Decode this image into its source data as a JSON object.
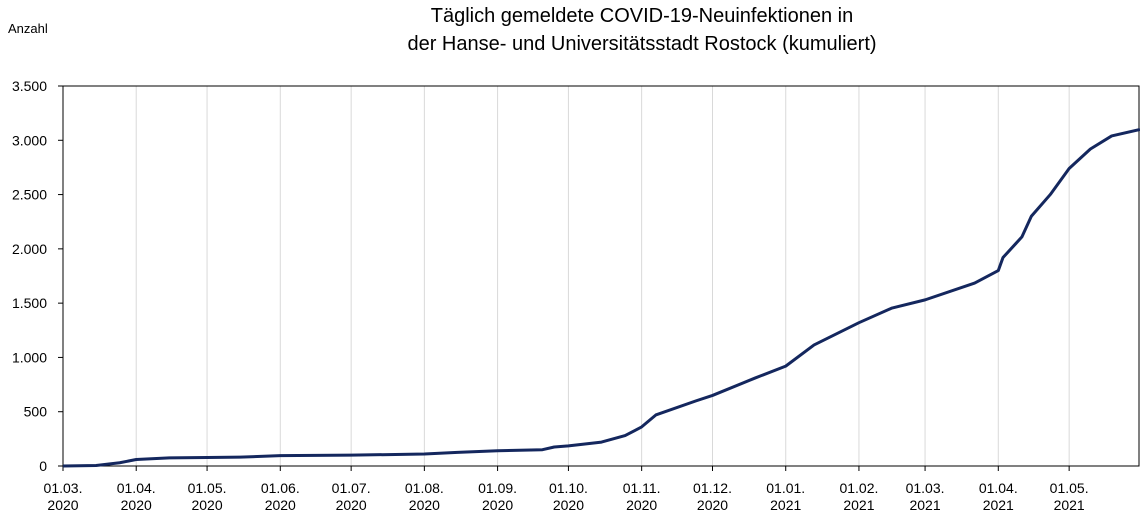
{
  "chart_data": {
    "type": "line",
    "title": [
      "Täglich gemeldete COVID-19-Neuinfektionen in",
      "der Hanse- und Universitätsstadt Rostock (kumuliert)"
    ],
    "y_label": "Anzahl",
    "x": [
      "2020-03-01",
      "2020-03-15",
      "2020-03-25",
      "2020-04-01",
      "2020-04-15",
      "2020-05-01",
      "2020-05-15",
      "2020-06-01",
      "2020-07-01",
      "2020-08-01",
      "2020-08-15",
      "2020-09-01",
      "2020-09-20",
      "2020-09-25",
      "2020-10-01",
      "2020-10-15",
      "2020-10-25",
      "2020-11-01",
      "2020-11-07",
      "2020-11-24",
      "2020-12-01",
      "2020-12-19",
      "2021-01-01",
      "2021-01-13",
      "2021-02-01",
      "2021-02-15",
      "2021-03-01",
      "2021-03-22",
      "2021-04-01",
      "2021-04-03",
      "2021-04-11",
      "2021-04-15",
      "2021-04-23",
      "2021-05-01",
      "2021-05-10",
      "2021-05-19",
      "2021-05-31"
    ],
    "series": [
      {
        "name": "kumuliert",
        "color": "#14275e",
        "values": [
          0,
          5,
          30,
          60,
          75,
          78,
          82,
          95,
          100,
          110,
          125,
          140,
          150,
          175,
          185,
          220,
          280,
          360,
          470,
          600,
          650,
          810,
          920,
          1115,
          1320,
          1455,
          1530,
          1685,
          1800,
          1920,
          2110,
          2300,
          2500,
          2740,
          2920,
          3040,
          3100
        ]
      }
    ],
    "xlim": [
      "2020-03-01",
      "2021-05-31"
    ],
    "xticks": [
      {
        "value": "2020-03-01",
        "label": "01.03. 2020"
      },
      {
        "value": "2020-04-01",
        "label": "01.04. 2020"
      },
      {
        "value": "2020-05-01",
        "label": "01.05. 2020"
      },
      {
        "value": "2020-06-01",
        "label": "01.06. 2020"
      },
      {
        "value": "2020-07-01",
        "label": "01.07. 2020"
      },
      {
        "value": "2020-08-01",
        "label": "01.08. 2020"
      },
      {
        "value": "2020-09-01",
        "label": "01.09. 2020"
      },
      {
        "value": "2020-10-01",
        "label": "01.10. 2020"
      },
      {
        "value": "2020-11-01",
        "label": "01.11. 2020"
      },
      {
        "value": "2020-12-01",
        "label": "01.12. 2020"
      },
      {
        "value": "2021-01-01",
        "label": "01.01. 2021"
      },
      {
        "value": "2021-02-01",
        "label": "01.02. 2021"
      },
      {
        "value": "2021-03-01",
        "label": "01.03. 2021"
      },
      {
        "value": "2021-04-01",
        "label": "01.04. 2021"
      },
      {
        "value": "2021-05-01",
        "label": "01.05. 2021"
      }
    ],
    "ylim": [
      0,
      3500
    ],
    "yticks": [
      0,
      500,
      {
        "value": 1000,
        "label": "1.000"
      },
      {
        "value": 1500,
        "label": "1.500"
      },
      {
        "value": 2000,
        "label": "2.000"
      },
      {
        "value": 2500,
        "label": "2.500"
      },
      {
        "value": 3000,
        "label": "3.000"
      },
      {
        "value": 3500,
        "label": "3.500"
      }
    ],
    "grid": "x"
  }
}
